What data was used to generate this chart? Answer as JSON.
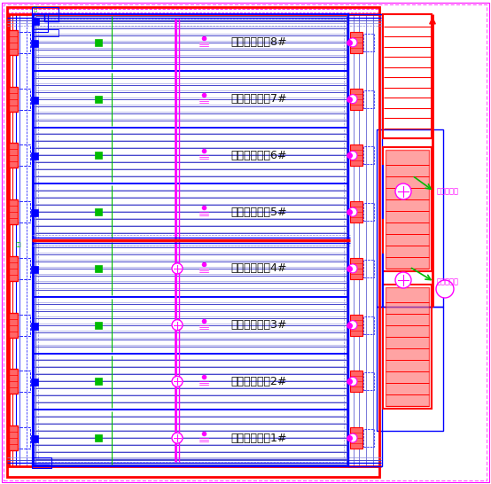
{
  "bg_color": "#ffffff",
  "red": "#ff0000",
  "blue": "#0000ff",
  "blue2": "#4444cc",
  "lblue": "#8888dd",
  "magenta": "#ff00ff",
  "green": "#00bb00",
  "red_fill": "#ff6666",
  "tank_labels": [
    "自养反硝化池1#",
    "自养反硝化池2#",
    "自养反硝化池3#",
    "自养反硝化池4#",
    "异氧反硝化池5#",
    "异氧反硝化池6#",
    "异氧反硝化池7#",
    "异氧反硝化池8#"
  ],
  "label_right1": "混合搅拌器",
  "label_right2": "混合搅拌器",
  "figsize": [
    5.54,
    5.46
  ],
  "dpi": 100
}
